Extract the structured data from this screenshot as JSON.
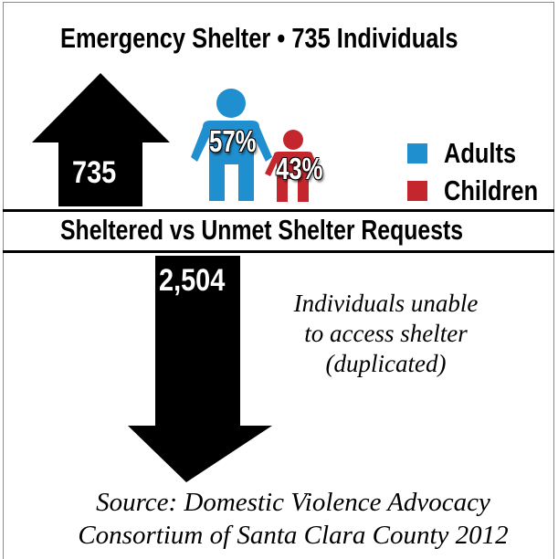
{
  "title": "Emergency Shelter • 735 Individuals",
  "subtitle": "Sheltered vs Unmet Shelter Requests",
  "colors": {
    "adults": "#1f8fcf",
    "children": "#c4262e",
    "arrow": "#000000"
  },
  "icons": {
    "adult": "adult-person-icon",
    "child": "child-person-icon"
  },
  "chart_data": {
    "type": "bar",
    "categories": [
      "Sheltered",
      "Unmet Shelter Requests"
    ],
    "values": [
      735,
      2504
    ],
    "value_labels": [
      "735",
      "2,504"
    ],
    "breakdown": {
      "categories": [
        "Adults",
        "Children"
      ],
      "values": [
        57,
        43
      ],
      "value_labels": [
        "57%",
        "43%"
      ]
    },
    "title": "Emergency Shelter • 735 Individuals",
    "subtitle": "Sheltered vs Unmet Shelter Requests",
    "legend": [
      "Adults",
      "Children"
    ],
    "legend_position": "right",
    "annotation": [
      "Individuals unable",
      "to access shelter",
      "(duplicated)"
    ],
    "source": [
      "Source: Domestic Violence Advocacy",
      "Consortium of Santa Clara County 2012"
    ]
  }
}
